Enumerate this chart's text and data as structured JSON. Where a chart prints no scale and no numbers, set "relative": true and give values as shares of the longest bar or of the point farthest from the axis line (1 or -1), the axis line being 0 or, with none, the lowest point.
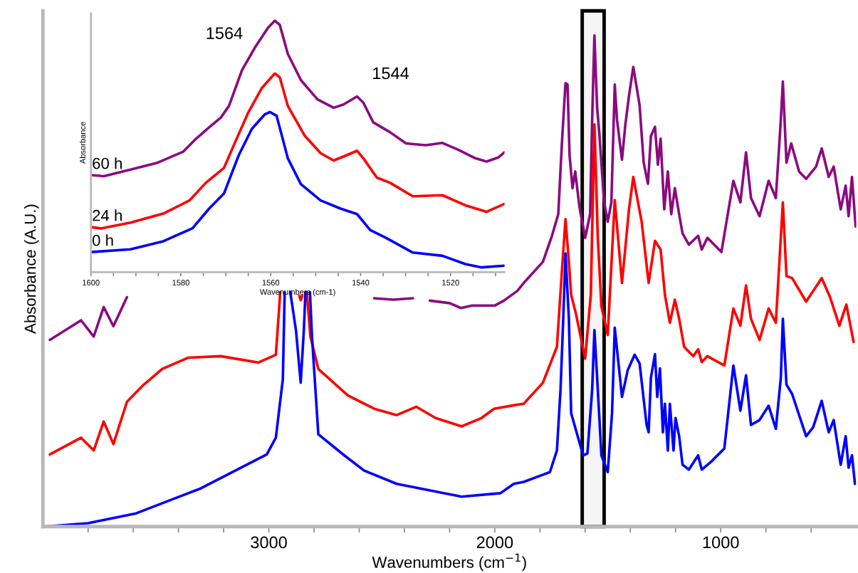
{
  "chart_data": [
    {
      "type": "line",
      "xlabel": "Wavenumbers (cm$^{−1}$)",
      "ylabel": "Absorbance (A.U.)",
      "relative": true,
      "legend": false,
      "grid": false,
      "marker": "none",
      "line_style": "solid",
      "xlim": [
        4000,
        400
      ],
      "xticks": [
        {
          "value": 3800,
          "label": null
        },
        {
          "value": 3600,
          "label": null
        },
        {
          "value": 3400,
          "label": null
        },
        {
          "value": 3200,
          "label": null
        },
        3000,
        {
          "value": 2800,
          "label": null
        },
        {
          "value": 2600,
          "label": null
        },
        {
          "value": 2400,
          "label": null
        },
        {
          "value": 2200,
          "label": null
        },
        2000,
        {
          "value": 1800,
          "label": null
        },
        {
          "value": 1600,
          "label": null
        },
        {
          "value": 1400,
          "label": null
        },
        {
          "value": 1200,
          "label": null
        },
        1000,
        {
          "value": 800,
          "label": null
        },
        {
          "value": 600,
          "label": null
        }
      ],
      "bands": [
        {
          "axis": "x",
          "from": 1613,
          "to": 1516,
          "color": "#000000"
        }
      ],
      "series": [
        {
          "color": "#8b0a80",
          "x": [
            3969,
            3831,
            3775,
            3731,
            3688,
            3628,
            3610,
            2560,
            2534,
            2450,
            2362,
            2330,
            2287,
            2200,
            2150,
            2100,
            2000,
            1960,
            1900,
            1872,
            1787,
            1747,
            1719,
            1703,
            1687,
            1678,
            1669,
            1656,
            1644,
            1625,
            1600,
            1578,
            1569,
            1559,
            1547,
            1537,
            1516,
            1500,
            1484,
            1469,
            1459,
            1437,
            1422,
            1406,
            1387,
            1359,
            1341,
            1322,
            1309,
            1291,
            1278,
            1266,
            1250,
            1234,
            1219,
            1203,
            1184,
            1169,
            1141,
            1100,
            1084,
            1059,
            997,
            944,
            913,
            888,
            866,
            828,
            788,
            756,
            734,
            725,
            709,
            688,
            653,
            622,
            578,
            553,
            522,
            500,
            469,
            447,
            434,
            419,
            403
          ],
          "values": [
            0.38,
            0.42,
            0.387,
            0.447,
            0.408,
            0.467,
            null,
            null,
            0.465,
            0.462,
            0.465,
            null,
            0.46,
            0.455,
            0.445,
            0.45,
            0.45,
            0.46,
            0.48,
            0.496,
            0.539,
            0.592,
            0.636,
            0.78,
            0.903,
            0.9,
            0.756,
            0.689,
            0.723,
            0.65,
            0.588,
            0.636,
            0.828,
            1.0,
            0.853,
            0.799,
            0.66,
            0.621,
            0.66,
            0.9,
            0.828,
            0.747,
            0.819,
            0.877,
            0.936,
            0.858,
            0.741,
            0.698,
            0.795,
            0.814,
            0.737,
            0.79,
            0.646,
            0.723,
            0.636,
            0.689,
            0.636,
            0.597,
            0.574,
            0.592,
            0.564,
            0.588,
            0.559,
            0.704,
            0.66,
            0.762,
            0.669,
            0.632,
            0.704,
            0.669,
            0.828,
            0.906,
            0.741,
            0.78,
            0.723,
            0.708,
            0.733,
            0.77,
            0.712,
            0.733,
            0.646,
            0.694,
            0.632,
            0.712,
            0.611
          ]
        },
        {
          "color": "#ff0000",
          "x": [
            3969,
            3831,
            3775,
            3731,
            3688,
            3628,
            3556,
            3472,
            3356,
            3213,
            3047,
            2969,
            2953,
            2950,
            2940,
            2865,
            2859,
            2852,
            2845,
            2832,
            2816,
            2781,
            2650,
            2534,
            2434,
            2347,
            2262,
            2147,
            2059,
            2003,
            1916,
            1872,
            1787,
            1725,
            1703,
            1687,
            1672,
            1662,
            1641,
            1600,
            1575,
            1559,
            1544,
            1528,
            1500,
            1469,
            1437,
            1406,
            1387,
            1350,
            1319,
            1291,
            1266,
            1247,
            1225,
            1203,
            1184,
            1162,
            1122,
            1100,
            1084,
            1059,
            984,
            944,
            913,
            888,
            866,
            828,
            788,
            756,
            725,
            709,
            684,
            622,
            553,
            516,
            475,
            444,
            412
          ],
          "values": [
            0.147,
            0.181,
            0.155,
            0.214,
            0.168,
            0.254,
            0.288,
            0.321,
            0.344,
            0.347,
            0.334,
            0.35,
            0.454,
            0.477,
            null,
            0.47,
            0.461,
            0.47,
            null,
            0.477,
            0.387,
            0.321,
            0.267,
            0.24,
            0.227,
            0.244,
            0.221,
            0.204,
            0.221,
            0.24,
            0.247,
            0.25,
            0.293,
            0.366,
            0.52,
            0.626,
            0.539,
            0.472,
            0.434,
            0.342,
            0.472,
            0.819,
            0.588,
            0.448,
            0.39,
            0.665,
            0.496,
            0.646,
            0.712,
            0.621,
            0.496,
            0.582,
            0.564,
            0.472,
            0.415,
            0.462,
            0.423,
            0.366,
            0.347,
            0.361,
            0.335,
            0.347,
            0.328,
            0.444,
            0.409,
            0.491,
            0.423,
            0.38,
            0.444,
            0.415,
            0.66,
            0.51,
            0.506,
            0.458,
            0.506,
            0.467,
            0.409,
            0.452,
            0.376
          ]
        },
        {
          "color": "#0000ff",
          "x": [
            3990,
            3800,
            3587,
            3300,
            3009,
            2969,
            2938,
            2930,
            2920,
            2905,
            2880,
            2859,
            2845,
            2838,
            2830,
            2818,
            2809,
            2781,
            2666,
            2578,
            2434,
            2147,
            1975,
            1916,
            1872,
            1756,
            1725,
            1709,
            1697,
            1687,
            1672,
            1662,
            1609,
            1590,
            1569,
            1559,
            1547,
            1528,
            1500,
            1481,
            1469,
            1437,
            1412,
            1381,
            1359,
            1328,
            1319,
            1309,
            1291,
            1281,
            1269,
            1256,
            1247,
            1234,
            1225,
            1209,
            1200,
            1184,
            1169,
            1141,
            1100,
            1084,
            1038,
            984,
            944,
            913,
            888,
            866,
            828,
            788,
            756,
            734,
            725,
            709,
            684,
            622,
            591,
            553,
            522,
            500,
            469,
            447,
            434,
            419,
            406
          ],
          "values": [
            0.0,
            0.007,
            0.027,
            0.078,
            0.147,
            0.181,
            0.3,
            0.477,
            null,
            0.477,
            0.4,
            0.293,
            0.4,
            0.477,
            null,
            0.477,
            0.387,
            0.188,
            0.145,
            0.114,
            0.087,
            0.061,
            0.068,
            0.087,
            0.091,
            0.111,
            0.155,
            0.279,
            0.423,
            0.556,
            0.423,
            0.231,
            0.145,
            0.149,
            0.279,
            0.4,
            0.303,
            0.145,
            0.111,
            0.231,
            0.405,
            0.264,
            0.318,
            0.35,
            0.332,
            0.207,
            0.192,
            0.303,
            0.351,
            0.264,
            0.322,
            0.192,
            0.25,
            0.155,
            0.25,
            0.155,
            0.221,
            0.184,
            0.126,
            0.116,
            0.145,
            0.116,
            0.134,
            0.159,
            0.328,
            0.236,
            0.308,
            0.207,
            0.217,
            0.246,
            0.199,
            0.303,
            0.423,
            0.289,
            0.27,
            0.184,
            0.202,
            0.256,
            0.192,
            0.217,
            0.126,
            0.184,
            0.12,
            0.145,
            0.087
          ]
        }
      ]
    },
    {
      "type": "line",
      "xlabel": "Wavenumbers (cm-1)",
      "ylabel": "Absorbance",
      "relative": true,
      "legend": false,
      "grid": false,
      "marker": "none",
      "line_style": "solid",
      "xlim": [
        1600,
        1508
      ],
      "xticks": [
        1600,
        {
          "value": 1595,
          "label": null
        },
        {
          "value": 1590,
          "label": null
        },
        {
          "value": 1585,
          "label": null
        },
        1580,
        {
          "value": 1575,
          "label": null
        },
        {
          "value": 1570,
          "label": null
        },
        {
          "value": 1565,
          "label": null
        },
        1560,
        {
          "value": 1555,
          "label": null
        },
        {
          "value": 1550,
          "label": null
        },
        {
          "value": 1545,
          "label": null
        },
        1540,
        {
          "value": 1535,
          "label": null
        },
        {
          "value": 1530,
          "label": null
        },
        {
          "value": 1525,
          "label": null
        },
        1520,
        {
          "value": 1515,
          "label": null
        },
        {
          "value": 1510,
          "label": null
        }
      ],
      "annotations": [
        {
          "text": "1564",
          "x": 1559.1,
          "y": 1.0
        },
        {
          "text": "1544",
          "x": 1540.8,
          "y": 0.699
        }
      ],
      "series": [
        {
          "name": "60 h",
          "color": "#8b0a80",
          "x": [
            1600,
            1597.1,
            1591.2,
            1585.4,
            1579.5,
            1576.6,
            1573.7,
            1571.1,
            1569.3,
            1566.4,
            1563.5,
            1560.6,
            1559.1,
            1558,
            1556.2,
            1553.3,
            1549.6,
            1546,
            1543.8,
            1540.8,
            1539.4,
            1537.2,
            1533.5,
            1529.9,
            1525.5,
            1521.8,
            1518.2,
            1514.5,
            1512,
            1509.4,
            1508
          ],
          "values": [
            0.386,
            0.382,
            0.408,
            0.434,
            0.479,
            0.531,
            0.576,
            0.615,
            0.661,
            0.803,
            0.894,
            0.972,
            1.0,
            0.984,
            0.868,
            0.764,
            0.687,
            0.654,
            0.667,
            0.699,
            0.674,
            0.596,
            0.557,
            0.512,
            0.505,
            0.514,
            0.486,
            0.453,
            0.44,
            0.456,
            0.477
          ]
        },
        {
          "name": "24 h",
          "color": "#ff0000",
          "x": [
            1600,
            1597.8,
            1591.2,
            1583.9,
            1578.1,
            1574.4,
            1570.4,
            1567.9,
            1565,
            1562,
            1559.1,
            1558,
            1556.2,
            1552.5,
            1548.9,
            1546,
            1543,
            1540.8,
            1539.4,
            1536.4,
            1533.5,
            1528.4,
            1521.8,
            1516.7,
            1512,
            1508
          ],
          "values": [
            0.179,
            0.174,
            0.197,
            0.233,
            0.285,
            0.356,
            0.415,
            0.518,
            0.635,
            0.732,
            0.79,
            0.775,
            0.661,
            0.544,
            0.473,
            0.444,
            0.466,
            0.483,
            0.453,
            0.376,
            0.356,
            0.302,
            0.306,
            0.266,
            0.24,
            0.272
          ]
        },
        {
          "name": "0 h",
          "color": "#0000ff",
          "x": [
            1600,
            1591.2,
            1583.9,
            1577.4,
            1573.7,
            1570.4,
            1567.1,
            1564.2,
            1561.3,
            1560.2,
            1558.7,
            1556.2,
            1553.3,
            1548.9,
            1544.5,
            1540.8,
            1537.9,
            1534.3,
            1528.4,
            1521.8,
            1516.7,
            1513.1,
            1508
          ],
          "values": [
            0.08,
            0.091,
            0.123,
            0.175,
            0.253,
            0.313,
            0.466,
            0.57,
            0.628,
            0.637,
            0.622,
            0.453,
            0.35,
            0.285,
            0.253,
            0.231,
            0.168,
            0.136,
            0.078,
            0.065,
            0.032,
            0.019,
            0.026
          ]
        }
      ]
    }
  ]
}
